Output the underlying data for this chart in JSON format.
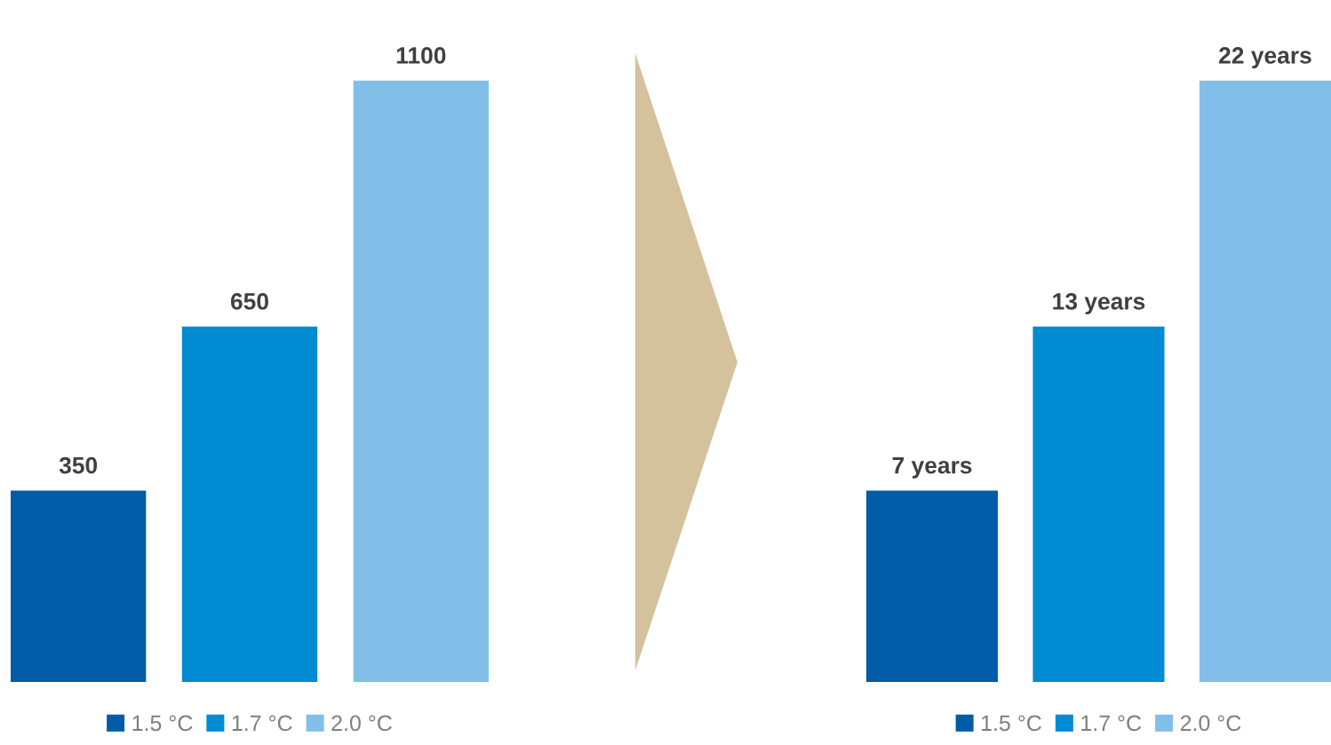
{
  "chart_data": [
    {
      "type": "bar",
      "categories": [
        null
      ],
      "data_labels": true,
      "legend": "bottom",
      "series": [
        {
          "name": "1.5 °C",
          "color": "#005ca6",
          "values": [
            350
          ]
        },
        {
          "name": "1.7 °C",
          "color": "#008bd2",
          "values": [
            650
          ]
        },
        {
          "name": "2.0 °C",
          "color": "#82bfe8",
          "values": [
            1100
          ]
        }
      ]
    },
    {
      "type": "bar",
      "categories": [
        null
      ],
      "legend": "bottom",
      "series": [
        {
          "name": "1.5 °C",
          "color": "#005ca6",
          "values": [
            7
          ],
          "value_labels": [
            "7 years"
          ]
        },
        {
          "name": "1.7 °C",
          "color": "#008bd2",
          "values": [
            13
          ],
          "value_labels": [
            "13 years"
          ]
        },
        {
          "name": "2.0 °C",
          "color": "#82bfe8",
          "values": [
            22
          ],
          "value_labels": [
            "22 years"
          ]
        }
      ]
    }
  ]
}
